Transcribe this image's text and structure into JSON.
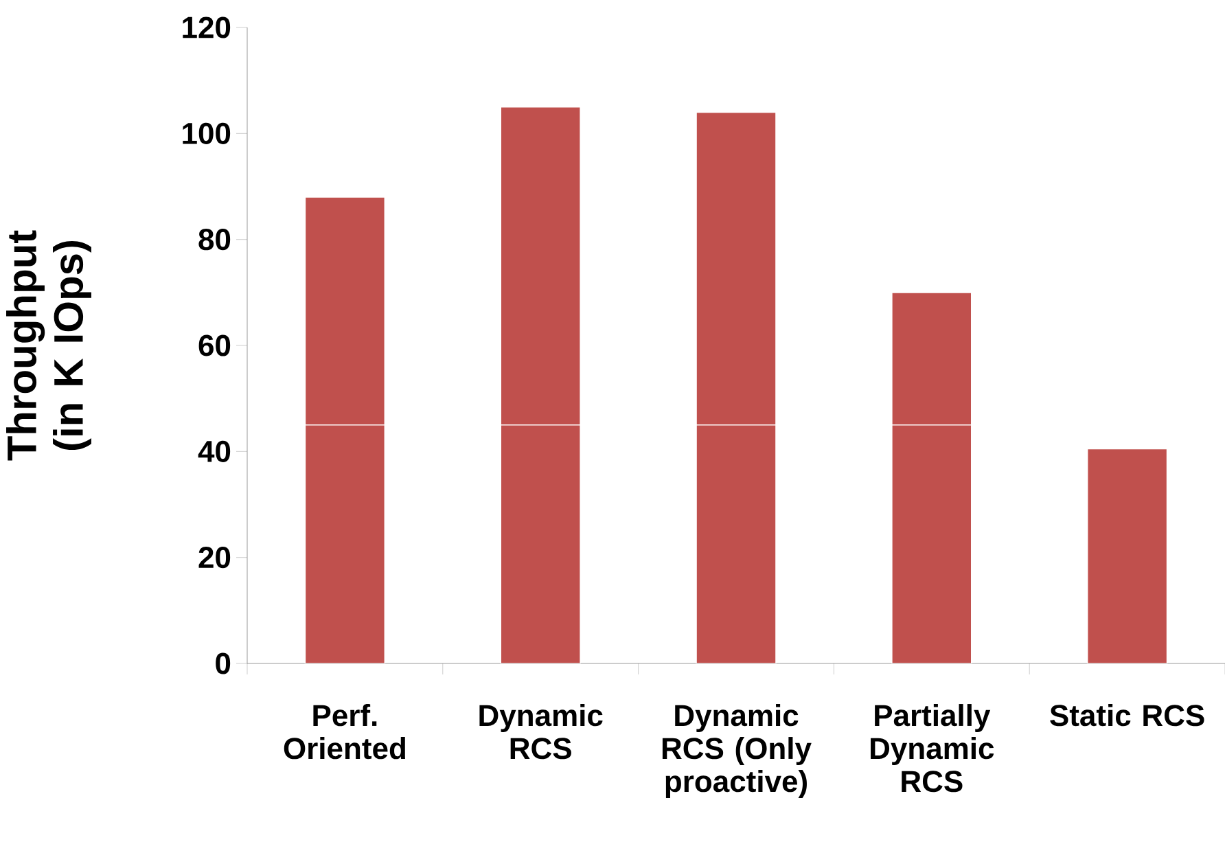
{
  "chart_data": {
    "type": "bar",
    "stacked": true,
    "ylabel": "Throughput (in K IOps)",
    "categories": [
      "Perf. Oriented",
      "Dynamic RCS",
      "Dynamic RCS (Only proactive)",
      "Partially Dynamic RCS",
      "Static RCS"
    ],
    "series": [
      {
        "color": "#c0504d",
        "values": [
          45,
          45,
          45,
          45,
          40.5
        ]
      },
      {
        "color": "#c0504d",
        "values": [
          43,
          60,
          59,
          25,
          null
        ]
      }
    ],
    "ylim": [
      0,
      120
    ],
    "yticks": [
      0,
      20,
      40,
      60,
      80,
      100,
      120
    ],
    "grid": false
  }
}
